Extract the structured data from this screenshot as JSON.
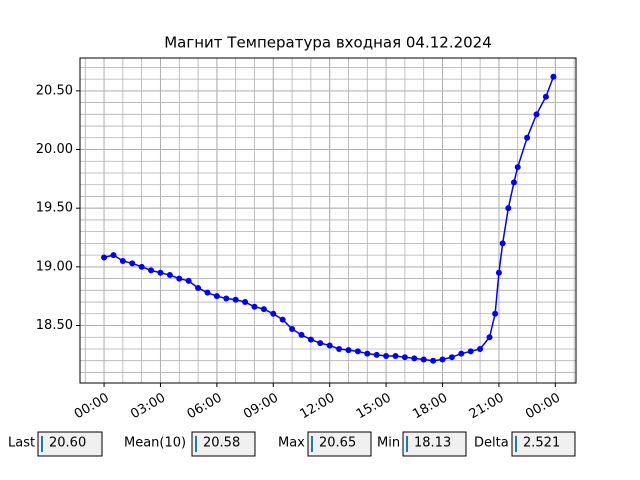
{
  "chart_data": {
    "type": "line",
    "title": "Магнит Температура входная 04.12.2024",
    "x": [
      0,
      0.5,
      1,
      1.5,
      2,
      2.5,
      3,
      3.5,
      4,
      4.5,
      5,
      5.5,
      6,
      6.5,
      7,
      7.5,
      8,
      8.5,
      9,
      9.5,
      10,
      10.5,
      11,
      11.5,
      12,
      12.5,
      13,
      13.5,
      14,
      14.5,
      15,
      15.5,
      16,
      16.5,
      17,
      17.5,
      18,
      18.5,
      19,
      19.5,
      20,
      20.5,
      20.8,
      21,
      21.2,
      21.5,
      21.8,
      22,
      22.5,
      23,
      23.5,
      23.9
    ],
    "series": [
      {
        "color": "#0000ff",
        "values": [
          19.08,
          19.1,
          19.05,
          19.03,
          19.0,
          18.97,
          18.95,
          18.93,
          18.9,
          18.88,
          18.82,
          18.78,
          18.75,
          18.73,
          18.72,
          18.7,
          18.66,
          18.64,
          18.6,
          18.55,
          18.47,
          18.42,
          18.38,
          18.35,
          18.33,
          18.3,
          18.29,
          18.28,
          18.26,
          18.25,
          18.24,
          18.24,
          18.23,
          18.22,
          18.21,
          18.2,
          18.21,
          18.23,
          18.26,
          18.28,
          18.3,
          18.4,
          18.6,
          18.95,
          19.2,
          19.5,
          19.72,
          19.85,
          20.1,
          20.3,
          20.45,
          20.62
        ]
      }
    ],
    "xlim": [
      -1.28,
      25.1
    ],
    "xticks": [
      {
        "value": 0,
        "label": "00:00"
      },
      {
        "value": 3,
        "label": "03:00"
      },
      {
        "value": 6,
        "label": "06:00"
      },
      {
        "value": 9,
        "label": "09:00"
      },
      {
        "value": 12,
        "label": "12:00"
      },
      {
        "value": 15,
        "label": "15:00"
      },
      {
        "value": 18,
        "label": "18:00"
      },
      {
        "value": 21,
        "label": "21:00"
      },
      {
        "value": 24,
        "label": "00:00"
      }
    ],
    "ylim": [
      18.01,
      20.78
    ],
    "yticks": [
      {
        "value": 18.5,
        "label": "18.50"
      },
      {
        "value": 19,
        "label": "19.00"
      },
      {
        "value": 19.5,
        "label": "19.50"
      },
      {
        "value": 20,
        "label": "20.00"
      },
      {
        "value": 20.5,
        "label": "20.50"
      }
    ],
    "grid": true
  },
  "widgets": [
    {
      "label": "Last",
      "value": "20.60"
    },
    {
      "label": "Mean(10)",
      "value": "20.58"
    },
    {
      "label": "Max",
      "value": "20.65"
    },
    {
      "label": "Min",
      "value": "18.13"
    },
    {
      "label": "Delta",
      "value": "2.521"
    }
  ]
}
